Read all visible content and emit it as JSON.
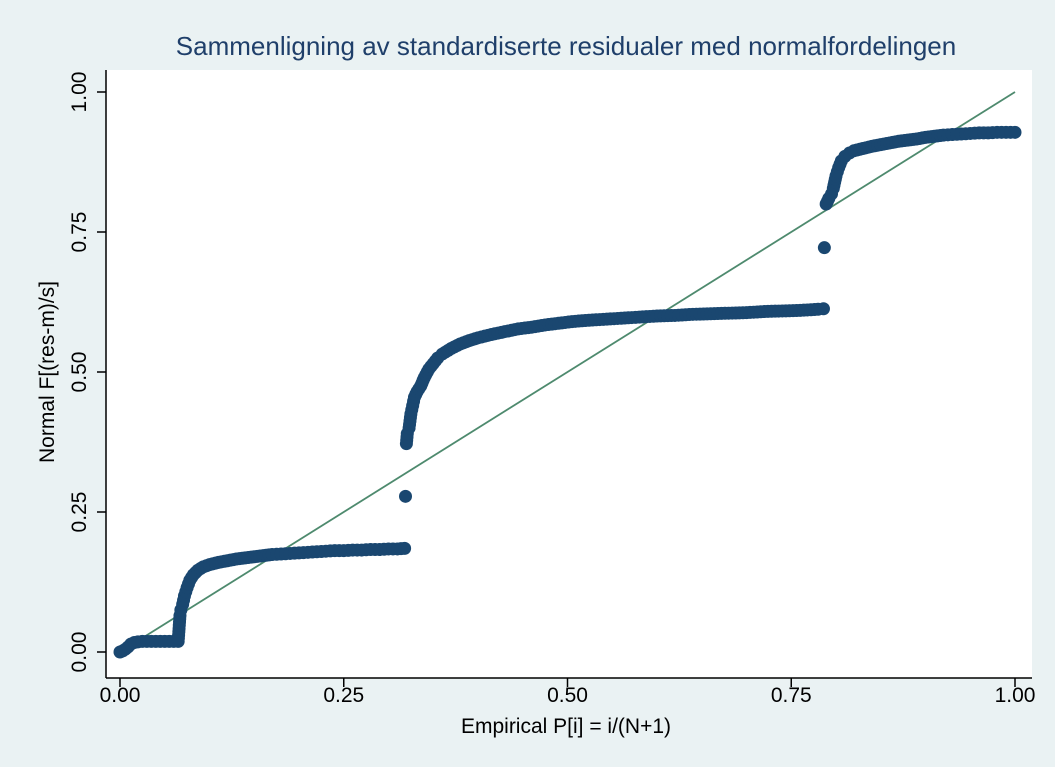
{
  "chart_data": {
    "type": "scatter",
    "title": "Sammenligning av standardiserte residualer med normalfordelingen",
    "xlabel": "Empirical P[i] = i/(N+1)",
    "ylabel": "Normal F[(res-m)/s]",
    "xlim": [
      0,
      1
    ],
    "ylim": [
      0,
      1
    ],
    "x_ticks": [
      0,
      0.25,
      0.5,
      0.75,
      1
    ],
    "y_ticks": [
      0,
      0.25,
      0.5,
      0.75,
      1
    ],
    "x_tick_labels": [
      "0.00",
      "0.25",
      "0.50",
      "0.75",
      "1.00"
    ],
    "y_tick_labels": [
      "0.00",
      "0.25",
      "0.50",
      "0.75",
      "1.00"
    ],
    "grid": false,
    "reference_line": {
      "x": [
        0,
        1
      ],
      "y": [
        0,
        1
      ]
    },
    "series": [
      {
        "points": [
          [
            0.0,
            0.0
          ],
          [
            0.003,
            0.002
          ],
          [
            0.006,
            0.005
          ],
          [
            0.009,
            0.009
          ],
          [
            0.012,
            0.014
          ],
          [
            0.016,
            0.017
          ],
          [
            0.02,
            0.018
          ],
          [
            0.025,
            0.019
          ],
          [
            0.03,
            0.019
          ],
          [
            0.035,
            0.019
          ],
          [
            0.04,
            0.019
          ],
          [
            0.045,
            0.019
          ],
          [
            0.05,
            0.019
          ],
          [
            0.055,
            0.019
          ],
          [
            0.06,
            0.019
          ],
          [
            0.065,
            0.019
          ],
          [
            0.067,
            0.065
          ],
          [
            0.068,
            0.075
          ],
          [
            0.07,
            0.085
          ],
          [
            0.072,
            0.1
          ],
          [
            0.075,
            0.115
          ],
          [
            0.078,
            0.128
          ],
          [
            0.082,
            0.138
          ],
          [
            0.087,
            0.146
          ],
          [
            0.093,
            0.152
          ],
          [
            0.1,
            0.156
          ],
          [
            0.11,
            0.16
          ],
          [
            0.12,
            0.163
          ],
          [
            0.13,
            0.166
          ],
          [
            0.14,
            0.168
          ],
          [
            0.15,
            0.17
          ],
          [
            0.16,
            0.172
          ],
          [
            0.17,
            0.174
          ],
          [
            0.18,
            0.175
          ],
          [
            0.19,
            0.176
          ],
          [
            0.2,
            0.177
          ],
          [
            0.21,
            0.178
          ],
          [
            0.22,
            0.179
          ],
          [
            0.23,
            0.18
          ],
          [
            0.24,
            0.181
          ],
          [
            0.25,
            0.181
          ],
          [
            0.26,
            0.182
          ],
          [
            0.27,
            0.182
          ],
          [
            0.28,
            0.183
          ],
          [
            0.29,
            0.183
          ],
          [
            0.3,
            0.184
          ],
          [
            0.31,
            0.184
          ],
          [
            0.318,
            0.185
          ],
          [
            0.319,
            0.278
          ],
          [
            0.32,
            0.372
          ],
          [
            0.321,
            0.39
          ],
          [
            0.323,
            0.4
          ],
          [
            0.325,
            0.425
          ],
          [
            0.327,
            0.44
          ],
          [
            0.329,
            0.455
          ],
          [
            0.332,
            0.465
          ],
          [
            0.336,
            0.475
          ],
          [
            0.34,
            0.49
          ],
          [
            0.345,
            0.505
          ],
          [
            0.35,
            0.515
          ],
          [
            0.355,
            0.525
          ],
          [
            0.36,
            0.532
          ],
          [
            0.37,
            0.542
          ],
          [
            0.38,
            0.55
          ],
          [
            0.39,
            0.556
          ],
          [
            0.4,
            0.561
          ],
          [
            0.415,
            0.567
          ],
          [
            0.43,
            0.572
          ],
          [
            0.445,
            0.577
          ],
          [
            0.46,
            0.58
          ],
          [
            0.475,
            0.584
          ],
          [
            0.49,
            0.587
          ],
          [
            0.505,
            0.59
          ],
          [
            0.52,
            0.592
          ],
          [
            0.54,
            0.594
          ],
          [
            0.56,
            0.596
          ],
          [
            0.58,
            0.598
          ],
          [
            0.6,
            0.6
          ],
          [
            0.62,
            0.601
          ],
          [
            0.64,
            0.603
          ],
          [
            0.66,
            0.604
          ],
          [
            0.68,
            0.605
          ],
          [
            0.7,
            0.606
          ],
          [
            0.72,
            0.608
          ],
          [
            0.74,
            0.609
          ],
          [
            0.76,
            0.61
          ],
          [
            0.78,
            0.612
          ],
          [
            0.786,
            0.613
          ],
          [
            0.787,
            0.722
          ],
          [
            0.789,
            0.8
          ],
          [
            0.792,
            0.81
          ],
          [
            0.795,
            0.818
          ],
          [
            0.797,
            0.828
          ],
          [
            0.8,
            0.85
          ],
          [
            0.803,
            0.865
          ],
          [
            0.806,
            0.877
          ],
          [
            0.81,
            0.885
          ],
          [
            0.815,
            0.891
          ],
          [
            0.82,
            0.895
          ],
          [
            0.83,
            0.899
          ],
          [
            0.84,
            0.903
          ],
          [
            0.85,
            0.906
          ],
          [
            0.86,
            0.909
          ],
          [
            0.87,
            0.912
          ],
          [
            0.88,
            0.914
          ],
          [
            0.89,
            0.916
          ],
          [
            0.9,
            0.919
          ],
          [
            0.91,
            0.921
          ],
          [
            0.92,
            0.923
          ],
          [
            0.93,
            0.924
          ],
          [
            0.94,
            0.925
          ],
          [
            0.95,
            0.926
          ],
          [
            0.96,
            0.927
          ],
          [
            0.97,
            0.927
          ],
          [
            0.98,
            0.928
          ],
          [
            0.99,
            0.928
          ],
          [
            1.0,
            0.928
          ]
        ]
      }
    ]
  },
  "colors": {
    "outer_background": "#eaf2f3",
    "plot_background": "#ffffff",
    "title": "#1f3f6a",
    "marker": "#1a4770",
    "reference_line": "#4e8a6e",
    "axis": "#000000"
  }
}
